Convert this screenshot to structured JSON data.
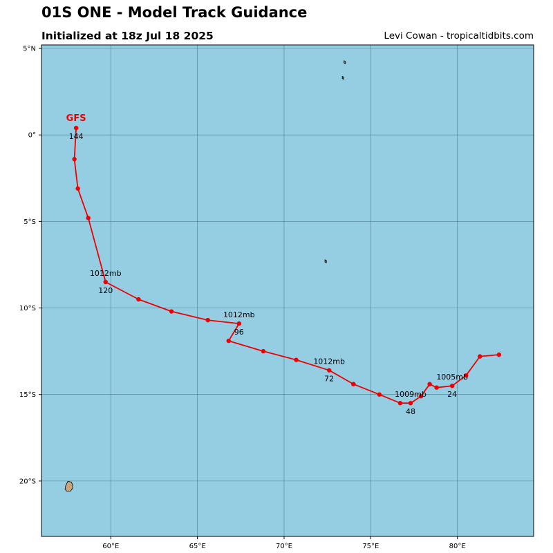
{
  "header": {
    "title": "01S ONE - Model Track Guidance",
    "subtitle": "Initialized at 18z Jul 18 2025",
    "credit": "Levi Cowan - tropicaltidbits.com"
  },
  "map": {
    "ocean_color": "#95cde3",
    "land_color": "#c8a47a",
    "grid_color": "#2f5f6b",
    "track_color": "#ee0000",
    "lon_range": [
      56,
      84.4
    ],
    "lat_range": [
      -23.2,
      5.2
    ],
    "lon_ticks": [
      {
        "value": 60,
        "label": "60°E"
      },
      {
        "value": 65,
        "label": "65°E"
      },
      {
        "value": 70,
        "label": "70°E"
      },
      {
        "value": 75,
        "label": "75°E"
      },
      {
        "value": 80,
        "label": "80°E"
      }
    ],
    "lat_ticks": [
      {
        "value": 5,
        "label": "5°N"
      },
      {
        "value": 0,
        "label": "0°"
      },
      {
        "value": -5,
        "label": "5°S"
      },
      {
        "value": -10,
        "label": "10°S"
      },
      {
        "value": -15,
        "label": "15°S"
      },
      {
        "value": -20,
        "label": "20°S"
      }
    ],
    "islands": [
      {
        "name": "mauritius",
        "lon": 57.6,
        "lat": -20.3
      },
      {
        "name": "small-island-a",
        "lon": 73.5,
        "lat": 4.2
      },
      {
        "name": "small-island-b",
        "lon": 73.4,
        "lat": 3.3
      },
      {
        "name": "small-island-c",
        "lon": 72.4,
        "lat": -7.3
      }
    ]
  },
  "track": {
    "model": "GFS",
    "points": [
      {
        "lon": 82.4,
        "lat": -12.7
      },
      {
        "lon": 81.3,
        "lat": -12.8
      },
      {
        "lon": 80.5,
        "lat": -13.9
      },
      {
        "lon": 79.7,
        "lat": -14.5
      },
      {
        "lon": 78.8,
        "lat": -14.6
      },
      {
        "lon": 78.4,
        "lat": -14.4
      },
      {
        "lon": 77.9,
        "lat": -15.1
      },
      {
        "lon": 77.3,
        "lat": -15.5
      },
      {
        "lon": 76.7,
        "lat": -15.5
      },
      {
        "lon": 75.5,
        "lat": -15.0
      },
      {
        "lon": 74.0,
        "lat": -14.4
      },
      {
        "lon": 72.6,
        "lat": -13.6
      },
      {
        "lon": 70.7,
        "lat": -13.0
      },
      {
        "lon": 68.8,
        "lat": -12.5
      },
      {
        "lon": 66.8,
        "lat": -11.9
      },
      {
        "lon": 67.4,
        "lat": -10.9
      },
      {
        "lon": 65.6,
        "lat": -10.7
      },
      {
        "lon": 63.5,
        "lat": -10.2
      },
      {
        "lon": 61.6,
        "lat": -9.5
      },
      {
        "lon": 59.7,
        "lat": -8.5
      },
      {
        "lon": 58.7,
        "lat": -4.8
      },
      {
        "lon": 58.1,
        "lat": -3.1
      },
      {
        "lon": 57.9,
        "lat": -1.4
      },
      {
        "lon": 58.0,
        "lat": 0.4
      }
    ],
    "labels": [
      {
        "lon": 79.7,
        "lat": -14.5,
        "hour": "24",
        "pressure": "1005mb"
      },
      {
        "lon": 77.3,
        "lat": -15.5,
        "hour": "48",
        "pressure": "1009mb"
      },
      {
        "lon": 72.6,
        "lat": -13.6,
        "hour": "72",
        "pressure": "1012mb"
      },
      {
        "lon": 67.4,
        "lat": -10.9,
        "hour": "96",
        "pressure": "1012mb"
      },
      {
        "lon": 59.7,
        "lat": -8.5,
        "hour": "120",
        "pressure": "1012mb"
      },
      {
        "lon": 58.0,
        "lat": 0.4,
        "hour": "144",
        "pressure": ""
      }
    ]
  }
}
